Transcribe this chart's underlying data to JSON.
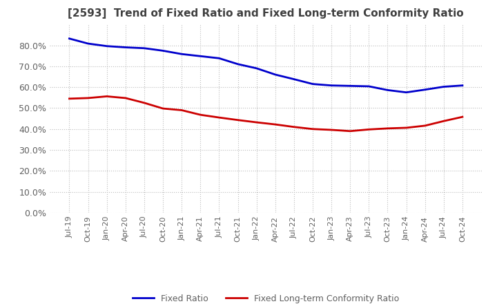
{
  "title": "[2593]  Trend of Fixed Ratio and Fixed Long-term Conformity Ratio",
  "fixed_ratio": {
    "label": "Fixed Ratio",
    "color": "#0000CC",
    "data": [
      [
        "Jul-19",
        0.832
      ],
      [
        "Oct-19",
        0.808
      ],
      [
        "Jan-20",
        0.796
      ],
      [
        "Apr-20",
        0.79
      ],
      [
        "Jul-20",
        0.786
      ],
      [
        "Oct-20",
        0.774
      ],
      [
        "Jan-21",
        0.758
      ],
      [
        "Apr-21",
        0.748
      ],
      [
        "Jul-21",
        0.738
      ],
      [
        "Oct-21",
        0.71
      ],
      [
        "Jan-22",
        0.69
      ],
      [
        "Apr-22",
        0.66
      ],
      [
        "Jul-22",
        0.638
      ],
      [
        "Oct-22",
        0.615
      ],
      [
        "Jan-23",
        0.608
      ],
      [
        "Apr-23",
        0.606
      ],
      [
        "Jul-23",
        0.604
      ],
      [
        "Oct-23",
        0.586
      ],
      [
        "Jan-24",
        0.575
      ],
      [
        "Apr-24",
        0.588
      ],
      [
        "Jul-24",
        0.602
      ],
      [
        "Oct-24",
        0.608
      ]
    ]
  },
  "fixed_lt_ratio": {
    "label": "Fixed Long-term Conformity Ratio",
    "color": "#CC0000",
    "data": [
      [
        "Jul-19",
        0.545
      ],
      [
        "Oct-19",
        0.548
      ],
      [
        "Jan-20",
        0.556
      ],
      [
        "Apr-20",
        0.548
      ],
      [
        "Jul-20",
        0.525
      ],
      [
        "Oct-20",
        0.498
      ],
      [
        "Jan-21",
        0.49
      ],
      [
        "Apr-21",
        0.468
      ],
      [
        "Jul-21",
        0.455
      ],
      [
        "Oct-21",
        0.443
      ],
      [
        "Jan-22",
        0.432
      ],
      [
        "Apr-22",
        0.422
      ],
      [
        "Jul-22",
        0.41
      ],
      [
        "Oct-22",
        0.4
      ],
      [
        "Jan-23",
        0.396
      ],
      [
        "Apr-23",
        0.39
      ],
      [
        "Jul-23",
        0.398
      ],
      [
        "Oct-23",
        0.403
      ],
      [
        "Jan-24",
        0.406
      ],
      [
        "Apr-24",
        0.416
      ],
      [
        "Jul-24",
        0.438
      ],
      [
        "Oct-24",
        0.458
      ]
    ]
  },
  "ylim": [
    0.0,
    0.9
  ],
  "yticks": [
    0.0,
    0.1,
    0.2,
    0.3,
    0.4,
    0.5,
    0.6,
    0.7,
    0.8
  ],
  "background_color": "#FFFFFF",
  "grid_color": "#BBBBBB",
  "title_color": "#404040",
  "tick_color": "#606060",
  "title_fontsize": 11,
  "tick_fontsize": 8,
  "line_width": 2.0
}
